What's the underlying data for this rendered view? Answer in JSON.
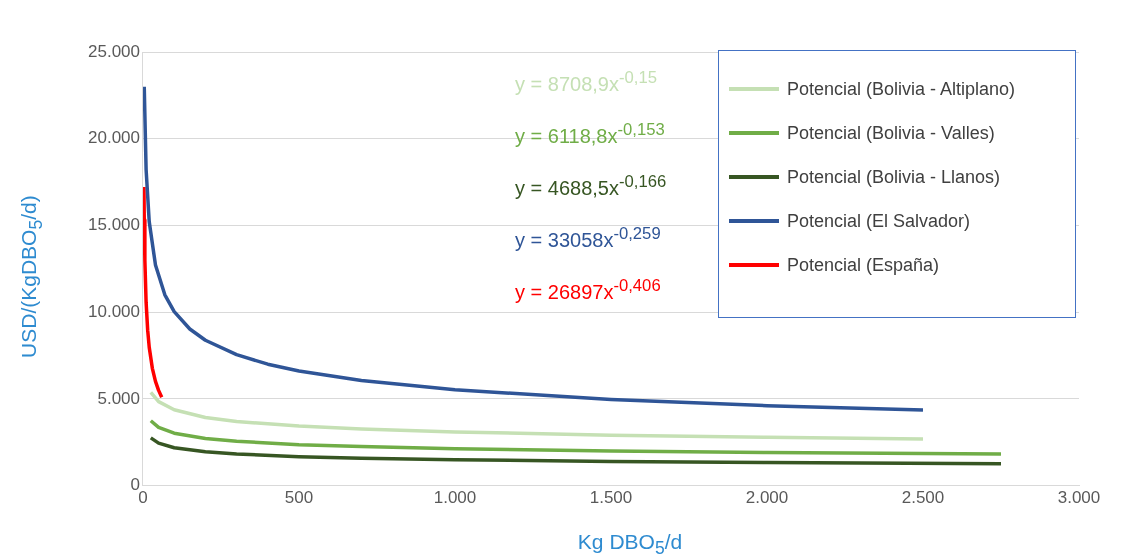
{
  "chart_data": {
    "type": "line",
    "xlabel": "Kg DBO$_{5}$/d",
    "ylabel": "USD/(KgDBO$_{5}$/d)",
    "xlim": [
      0,
      3000
    ],
    "xticks": [
      0,
      500,
      {
        "value": 1000,
        "label": "1.000"
      },
      {
        "value": 1500,
        "label": "1.500"
      },
      {
        "value": 2000,
        "label": "2.000"
      },
      {
        "value": 2500,
        "label": "2.500"
      },
      {
        "value": 3000,
        "label": "3.000"
      }
    ],
    "ylim": [
      0,
      25000
    ],
    "yticks": [
      0,
      {
        "value": 5000,
        "label": "5.000"
      },
      {
        "value": 10000,
        "label": "10.000"
      },
      {
        "value": 15000,
        "label": "15.000"
      },
      {
        "value": 20000,
        "label": "20.000"
      },
      {
        "value": 25000,
        "label": "25.000"
      }
    ],
    "grid": "y",
    "legend": "top right",
    "marker": "none",
    "line_style": "solid",
    "annotations": [
      "y = 8708,9x$^{-0,15}$",
      "y = 6118,8x$^{-0,153}$",
      "y = 4688,5x$^{-0,166}$",
      "y = 33058x$^{-0,259}$",
      "y = 26897x$^{-0,406}$"
    ],
    "series": [
      {
        "name": "Potencial (Bolivia - Altiplano)",
        "color": "#c5e0b4",
        "x": [
          25,
          50,
          100,
          200,
          300,
          500,
          700,
          1000,
          1500,
          2000,
          2500
        ],
        "values": [
          5370,
          4840,
          4370,
          3930,
          3700,
          3430,
          3260,
          3090,
          2910,
          2790,
          2690
        ]
      },
      {
        "name": "Potencial (Bolivia - Valles)",
        "color": "#70ad47",
        "x": [
          25,
          50,
          100,
          200,
          300,
          500,
          700,
          1000,
          1500,
          2000,
          2750
        ],
        "values": [
          3740,
          3360,
          3020,
          2720,
          2560,
          2360,
          2250,
          2130,
          2000,
          1910,
          1820
        ]
      },
      {
        "name": "Potencial (Bolivia - Llanos)",
        "color": "#375623",
        "x": [
          25,
          50,
          100,
          200,
          300,
          500,
          700,
          1000,
          1500,
          2000,
          2750
        ],
        "values": [
          2750,
          2450,
          2180,
          1950,
          1820,
          1670,
          1580,
          1490,
          1390,
          1330,
          1260
        ]
      },
      {
        "name": "Potencial (El Salvador)",
        "color": "#2f5597",
        "x": [
          4,
          10,
          20,
          40,
          70,
          100,
          150,
          200,
          300,
          400,
          500,
          700,
          1000,
          1500,
          2000,
          2500
        ],
        "values": [
          23000,
          18210,
          15210,
          12720,
          11000,
          10030,
          9030,
          8380,
          7550,
          7000,
          6610,
          6060,
          5520,
          4970,
          4610,
          4360
        ]
      },
      {
        "name": "Potencial (España)",
        "color": "#ff0000",
        "x": [
          3,
          4,
          6,
          10,
          15,
          20,
          30,
          40,
          50,
          60
        ],
        "values": [
          17220,
          15320,
          12990,
          10560,
          8960,
          7970,
          6760,
          6010,
          5490,
          5100
        ]
      }
    ]
  }
}
